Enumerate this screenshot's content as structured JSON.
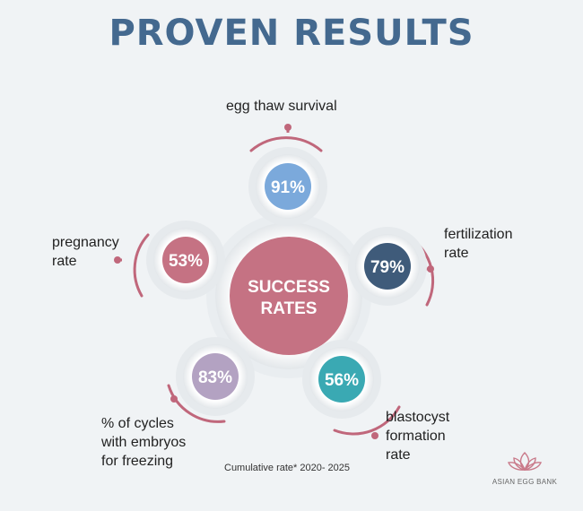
{
  "title": "PROVEN RESULTS",
  "center": {
    "line1": "SUCCESS",
    "line2": "RATES"
  },
  "metrics": [
    {
      "value": "91%",
      "label": "egg thaw survival",
      "color": "#7ba9db"
    },
    {
      "value": "79%",
      "label": "fertilization rate",
      "color": "#3f5b7a"
    },
    {
      "value": "56%",
      "label": "blastocyst formation rate",
      "color": "#3aa9b3"
    },
    {
      "value": "83%",
      "label": "% of cycles with embryos for freezing",
      "color": "#b3a2c2"
    },
    {
      "value": "53%",
      "label": "pregnancy rate",
      "color": "#c57283"
    }
  ],
  "label_lines": {
    "egg": [
      "egg thaw survival"
    ],
    "fert": [
      "fertilization",
      "rate"
    ],
    "blast": [
      "blastocyst",
      "formation",
      "rate"
    ],
    "cycles": [
      "% of cycles",
      "with embryos",
      "for freezing"
    ],
    "preg": [
      "pregnancy",
      "rate"
    ]
  },
  "footnote": "Cumulative rate* 2020- 2025",
  "logo": {
    "text": "ASIAN EGG BANK",
    "icon": "lotus-icon"
  },
  "colors": {
    "title": "#44698f",
    "accent": "#c0677b",
    "center": "#c57283"
  }
}
